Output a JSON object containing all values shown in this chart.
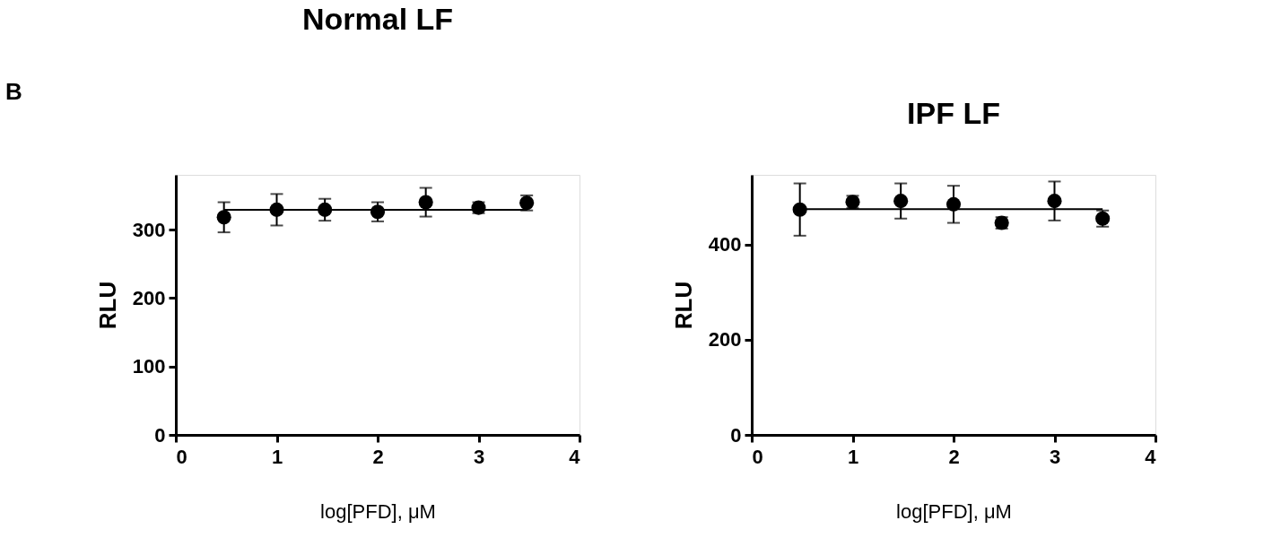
{
  "chart_data": [
    {
      "type": "scatter",
      "title": "Normal LF",
      "xlabel": "log[PFD], μM",
      "ylabel": "RLU",
      "annotations": [
        "B"
      ],
      "xlim": [
        0,
        4
      ],
      "ylim": [
        0,
        380
      ],
      "xticks": [
        0,
        1,
        2,
        3,
        4
      ],
      "yticks": [
        0,
        100,
        200,
        300
      ],
      "marker": "circle",
      "series": [
        {
          "color": "#000000",
          "x": [
            0.477,
            1,
            1.477,
            2,
            2.477,
            3,
            3.477
          ],
          "values": [
            318,
            329,
            329,
            326,
            340,
            332,
            339
          ],
          "errors": [
            22,
            23,
            16,
            14,
            21,
            8,
            11
          ]
        },
        {
          "type": "line",
          "color": "#000000",
          "marker": "none",
          "x": [
            0.477,
            3.477
          ],
          "values": [
            329,
            329
          ]
        }
      ]
    },
    {
      "type": "scatter",
      "title": "IPF LF",
      "xlabel": "log[PFD], μM",
      "ylabel": "RLU",
      "xlim": [
        0,
        4
      ],
      "ylim": [
        0,
        547
      ],
      "xticks": [
        0,
        1,
        2,
        3,
        4
      ],
      "yticks": [
        0,
        200,
        400
      ],
      "marker": "circle",
      "series": [
        {
          "color": "#000000",
          "x": [
            0.477,
            1,
            1.477,
            2,
            2.477,
            3,
            3.477
          ],
          "values": [
            474,
            490,
            492,
            485,
            446,
            492,
            455
          ],
          "errors": [
            55,
            13,
            37,
            39,
            12,
            41,
            17
          ]
        },
        {
          "type": "line",
          "color": "#000000",
          "marker": "none",
          "x": [
            0.477,
            3.477
          ],
          "values": [
            475,
            475
          ]
        }
      ]
    }
  ]
}
